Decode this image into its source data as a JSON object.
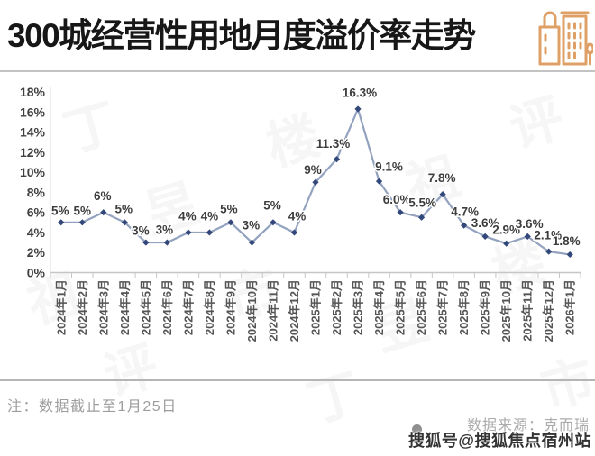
{
  "page": {
    "title": "300城经营性用地月度溢价率走势",
    "note": "注：数据截止至1月25日",
    "source": "数据来源：克而瑞",
    "overlay_watermark": "搜狐号@搜狐焦点宿州站",
    "watermark_text": "丁祖昱评楼市",
    "header_icon": "buildings-icon",
    "bullet_icon": "dot-icon"
  },
  "colors": {
    "title": "#171717",
    "icon_orange": "#dfa067",
    "line": "#93a2bf",
    "marker": "#33487a",
    "data_label": "#3d3d3d",
    "y_tick_label": "#404040",
    "x_tick_label": "#555555",
    "axis_line": "#c6c6c6",
    "y_axis_line": "#dadada",
    "divider": "#c3c3c3",
    "note_text": "#9d9d9d",
    "source_text": "#ababab",
    "overlay_text": "#333333"
  },
  "chart_data": {
    "type": "line",
    "title": "300城经营性用地月度溢价率走势",
    "xlabel": "",
    "ylabel": "",
    "ylim": [
      0,
      18
    ],
    "y_tick_step": 2,
    "grid": false,
    "legend": "none",
    "x_label_rotation": -90,
    "categories": [
      "2024年1月",
      "2024年2月",
      "2024年3月",
      "2024年4月",
      "2024年5月",
      "2024年6月",
      "2024年7月",
      "2024年8月",
      "2024年9月",
      "2024年10月",
      "2024年11月",
      "2024年12月",
      "2025年1月",
      "2025年2月",
      "2025年3月",
      "2025年4月",
      "2025年5月",
      "2025年6月",
      "2025年7月",
      "2025年8月",
      "2025年9月",
      "2025年10月",
      "2025年11月",
      "2025年12月",
      "2026年1月"
    ],
    "values": [
      5,
      5,
      6,
      5,
      3,
      3,
      4,
      4,
      5,
      3,
      5,
      4,
      9,
      11.3,
      16.3,
      9.1,
      6.0,
      5.5,
      7.8,
      4.7,
      3.6,
      2.9,
      3.6,
      2.1,
      1.8
    ],
    "point_labels": [
      "5%",
      "5%",
      "6%",
      "5%",
      "3%",
      "3%",
      "4%",
      "4%",
      "5%",
      "3%",
      "5%",
      "4%",
      "9%",
      "11.3%",
      "16.3%",
      "9.1%",
      "6.0%",
      "5.5%",
      "7.8%",
      "4.7%",
      "3.6%",
      "2.9%",
      "3.6%",
      "2.1%",
      "1.8%"
    ],
    "y_ticks": [
      "0%",
      "2%",
      "4%",
      "6%",
      "8%",
      "10%",
      "12%",
      "14%",
      "16%",
      "18%"
    ]
  }
}
